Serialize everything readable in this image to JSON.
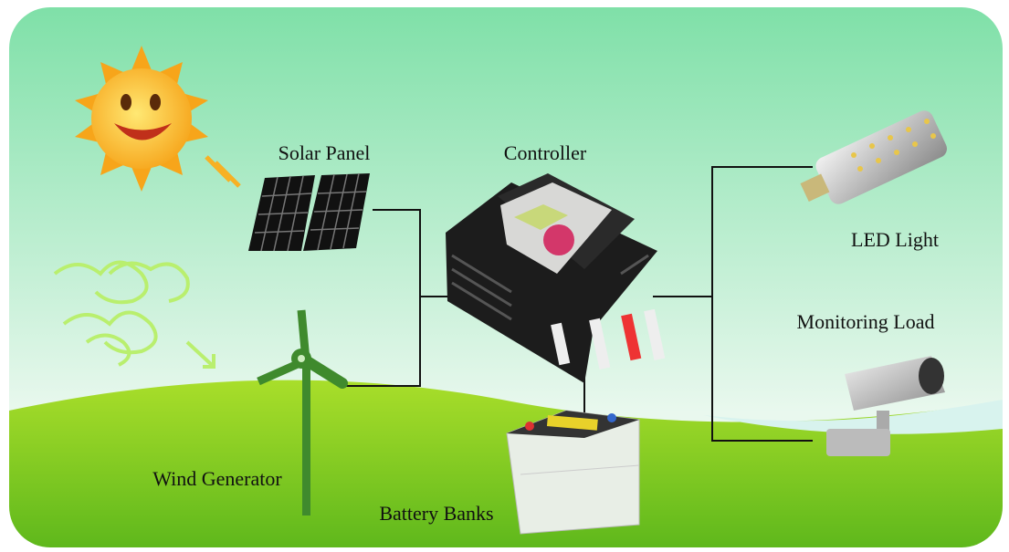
{
  "nodes": [
    {
      "label": "Solar Panel"
    },
    {
      "label": "Controller"
    },
    {
      "label": "LED Light"
    },
    {
      "label": "Monitoring Load"
    },
    {
      "label": "Wind Generator"
    },
    {
      "label": "Battery Banks"
    }
  ]
}
